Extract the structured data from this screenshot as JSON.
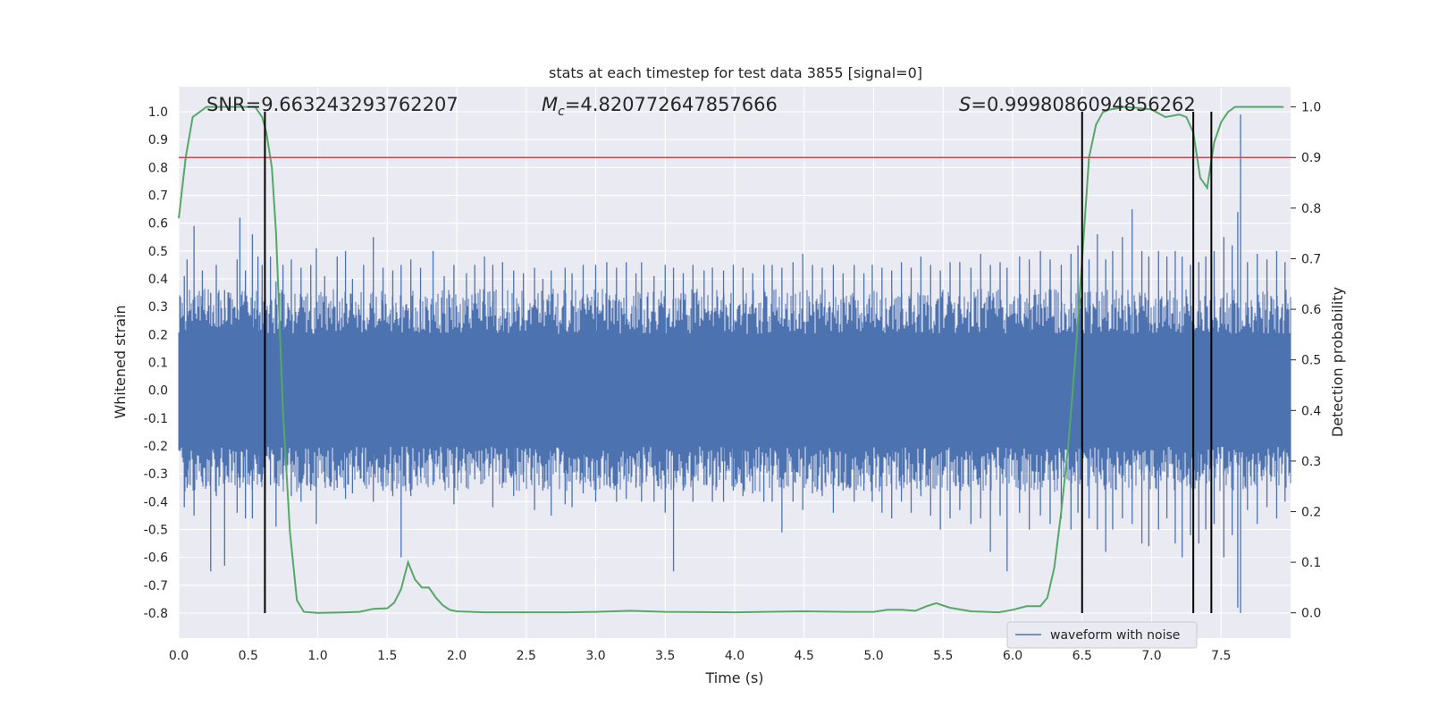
{
  "chart_data": {
    "type": "line",
    "title": "stats at each timestep for test data 3855 [signal=0]",
    "xlabel": "Time (s)",
    "ylabel": "Whitened strain",
    "y2label": "Detection probability",
    "xlim": [
      0,
      8
    ],
    "ylim": [
      -0.89,
      1.09
    ],
    "y2lim": [
      -0.05,
      1.04
    ],
    "x_ticks": [
      "0.0",
      "0.5",
      "1.0",
      "1.5",
      "2.0",
      "2.5",
      "3.0",
      "3.5",
      "4.0",
      "4.5",
      "5.0",
      "5.5",
      "6.0",
      "6.5",
      "7.0",
      "7.5"
    ],
    "y_ticks": [
      "1.0",
      "0.9",
      "0.8",
      "0.7",
      "0.6",
      "0.5",
      "0.4",
      "0.3",
      "0.2",
      "0.1",
      "0.0",
      "-0.1",
      "-0.2",
      "-0.3",
      "-0.4",
      "-0.5",
      "-0.6",
      "-0.7",
      "-0.8"
    ],
    "y2_ticks": [
      "1.0",
      "0.9",
      "0.8",
      "0.7",
      "0.6",
      "0.5",
      "0.4",
      "0.3",
      "0.2",
      "0.1",
      "0.0"
    ],
    "annotations": {
      "snr": "SNR=9.663243293762207",
      "mc_prefix": "M",
      "mc_sub": "c",
      "mc_value": "=4.820772647857666",
      "s_prefix": "S",
      "s_value": "=0.9998086094856262"
    },
    "grid": true,
    "legend": {
      "position": "lower-right",
      "entries": [
        "waveform with noise"
      ]
    },
    "colors": {
      "waveform": "#4c72b0",
      "probability": "#55a868",
      "threshold": "#c44e52",
      "markers": "#000000",
      "background": "#eaeaf2",
      "grid": "#ffffff"
    },
    "waveform": {
      "envelope_typical": 0.27,
      "spikes": [
        {
          "t": 0.04,
          "hi": 0.41,
          "lo": -0.42
        },
        {
          "t": 0.06,
          "hi": 0.47,
          "lo": -0.35
        },
        {
          "t": 0.11,
          "hi": 0.59,
          "lo": -0.45
        },
        {
          "t": 0.17,
          "hi": 0.43,
          "lo": -0.33
        },
        {
          "t": 0.23,
          "hi": 0.35,
          "lo": -0.65
        },
        {
          "t": 0.27,
          "hi": 0.45,
          "lo": -0.38
        },
        {
          "t": 0.33,
          "hi": 0.36,
          "lo": -0.63
        },
        {
          "t": 0.42,
          "hi": 0.47,
          "lo": -0.44
        },
        {
          "t": 0.44,
          "hi": 0.62,
          "lo": -0.35
        },
        {
          "t": 0.48,
          "hi": 0.43,
          "lo": -0.46
        },
        {
          "t": 0.53,
          "hi": 0.56,
          "lo": -0.46
        },
        {
          "t": 0.57,
          "hi": 0.48,
          "lo": -0.3
        },
        {
          "t": 0.6,
          "hi": 0.45,
          "lo": -0.32
        },
        {
          "t": 0.66,
          "hi": 0.48,
          "lo": -0.34
        },
        {
          "t": 0.7,
          "hi": 0.39,
          "lo": -0.49
        },
        {
          "t": 0.75,
          "hi": 0.45,
          "lo": -0.32
        },
        {
          "t": 0.81,
          "hi": 0.47,
          "lo": -0.38
        },
        {
          "t": 0.88,
          "hi": 0.44,
          "lo": -0.4
        },
        {
          "t": 0.95,
          "hi": 0.45,
          "lo": -0.36
        },
        {
          "t": 0.99,
          "hi": 0.51,
          "lo": -0.48
        },
        {
          "t": 1.05,
          "hi": 0.41,
          "lo": -0.33
        },
        {
          "t": 1.14,
          "hi": 0.48,
          "lo": -0.35
        },
        {
          "t": 1.2,
          "hi": 0.5,
          "lo": -0.39
        },
        {
          "t": 1.25,
          "hi": 0.4,
          "lo": -0.37
        },
        {
          "t": 1.33,
          "hi": 0.45,
          "lo": -0.33
        },
        {
          "t": 1.4,
          "hi": 0.55,
          "lo": -0.4
        },
        {
          "t": 1.47,
          "hi": 0.44,
          "lo": -0.36
        },
        {
          "t": 1.54,
          "hi": 0.43,
          "lo": -0.38
        },
        {
          "t": 1.6,
          "hi": 0.45,
          "lo": -0.6
        },
        {
          "t": 1.67,
          "hi": 0.47,
          "lo": -0.38
        },
        {
          "t": 1.74,
          "hi": 0.44,
          "lo": -0.31
        },
        {
          "t": 1.83,
          "hi": 0.5,
          "lo": -0.34
        },
        {
          "t": 1.91,
          "hi": 0.41,
          "lo": -0.33
        },
        {
          "t": 1.98,
          "hi": 0.45,
          "lo": -0.41
        },
        {
          "t": 2.07,
          "hi": 0.42,
          "lo": -0.35
        },
        {
          "t": 2.13,
          "hi": 0.45,
          "lo": -0.32
        },
        {
          "t": 2.2,
          "hi": 0.48,
          "lo": -0.32
        },
        {
          "t": 2.26,
          "hi": 0.45,
          "lo": -0.42
        },
        {
          "t": 2.33,
          "hi": 0.46,
          "lo": -0.31
        },
        {
          "t": 2.41,
          "hi": 0.43,
          "lo": -0.38
        },
        {
          "t": 2.48,
          "hi": 0.42,
          "lo": -0.33
        },
        {
          "t": 2.56,
          "hi": 0.44,
          "lo": -0.43
        },
        {
          "t": 2.62,
          "hi": 0.4,
          "lo": -0.36
        },
        {
          "t": 2.68,
          "hi": 0.43,
          "lo": -0.45
        },
        {
          "t": 2.78,
          "hi": 0.44,
          "lo": -0.41
        },
        {
          "t": 2.83,
          "hi": 0.42,
          "lo": -0.42
        },
        {
          "t": 2.91,
          "hi": 0.45,
          "lo": -0.37
        },
        {
          "t": 3.0,
          "hi": 0.45,
          "lo": -0.4
        },
        {
          "t": 3.08,
          "hi": 0.46,
          "lo": -0.34
        },
        {
          "t": 3.15,
          "hi": 0.44,
          "lo": -0.4
        },
        {
          "t": 3.22,
          "hi": 0.46,
          "lo": -0.39
        },
        {
          "t": 3.29,
          "hi": 0.42,
          "lo": -0.35
        },
        {
          "t": 3.33,
          "hi": 0.46,
          "lo": -0.4
        },
        {
          "t": 3.42,
          "hi": 0.41,
          "lo": -0.4
        },
        {
          "t": 3.5,
          "hi": 0.45,
          "lo": -0.44
        },
        {
          "t": 3.56,
          "hi": 0.44,
          "lo": -0.65
        },
        {
          "t": 3.63,
          "hi": 0.42,
          "lo": -0.36
        },
        {
          "t": 3.7,
          "hi": 0.45,
          "lo": -0.4
        },
        {
          "t": 3.78,
          "hi": 0.43,
          "lo": -0.34
        },
        {
          "t": 3.84,
          "hi": 0.44,
          "lo": -0.4
        },
        {
          "t": 3.92,
          "hi": 0.43,
          "lo": -0.4
        },
        {
          "t": 3.99,
          "hi": 0.45,
          "lo": -0.36
        },
        {
          "t": 4.06,
          "hi": 0.44,
          "lo": -0.38
        },
        {
          "t": 4.13,
          "hi": 0.42,
          "lo": -0.37
        },
        {
          "t": 4.21,
          "hi": 0.45,
          "lo": -0.4
        },
        {
          "t": 4.27,
          "hi": 0.45,
          "lo": -0.4
        },
        {
          "t": 4.34,
          "hi": 0.44,
          "lo": -0.51
        },
        {
          "t": 4.42,
          "hi": 0.46,
          "lo": -0.4
        },
        {
          "t": 4.49,
          "hi": 0.49,
          "lo": -0.43
        },
        {
          "t": 4.56,
          "hi": 0.45,
          "lo": -0.37
        },
        {
          "t": 4.63,
          "hi": 0.44,
          "lo": -0.38
        },
        {
          "t": 4.71,
          "hi": 0.45,
          "lo": -0.44
        },
        {
          "t": 4.78,
          "hi": 0.42,
          "lo": -0.36
        },
        {
          "t": 4.86,
          "hi": 0.45,
          "lo": -0.4
        },
        {
          "t": 4.93,
          "hi": 0.42,
          "lo": -0.36
        },
        {
          "t": 4.99,
          "hi": 0.45,
          "lo": -0.4
        },
        {
          "t": 5.06,
          "hi": 0.44,
          "lo": -0.44
        },
        {
          "t": 5.13,
          "hi": 0.43,
          "lo": -0.46
        },
        {
          "t": 5.2,
          "hi": 0.46,
          "lo": -0.4
        },
        {
          "t": 5.27,
          "hi": 0.44,
          "lo": -0.44
        },
        {
          "t": 5.34,
          "hi": 0.48,
          "lo": -0.38
        },
        {
          "t": 5.41,
          "hi": 0.45,
          "lo": -0.45
        },
        {
          "t": 5.48,
          "hi": 0.43,
          "lo": -0.5
        },
        {
          "t": 5.55,
          "hi": 0.46,
          "lo": -0.46
        },
        {
          "t": 5.62,
          "hi": 0.46,
          "lo": -0.43
        },
        {
          "t": 5.7,
          "hi": 0.44,
          "lo": -0.48
        },
        {
          "t": 5.77,
          "hi": 0.49,
          "lo": -0.46
        },
        {
          "t": 5.84,
          "hi": 0.45,
          "lo": -0.58
        },
        {
          "t": 5.91,
          "hi": 0.46,
          "lo": -0.45
        },
        {
          "t": 5.96,
          "hi": 0.44,
          "lo": -0.65
        },
        {
          "t": 6.05,
          "hi": 0.48,
          "lo": -0.44
        },
        {
          "t": 6.12,
          "hi": 0.47,
          "lo": -0.5
        },
        {
          "t": 6.2,
          "hi": 0.5,
          "lo": -0.45
        },
        {
          "t": 6.27,
          "hi": 0.47,
          "lo": -0.48
        },
        {
          "t": 6.35,
          "hi": 0.45,
          "lo": -0.46
        },
        {
          "t": 6.42,
          "hi": 0.49,
          "lo": -0.5
        },
        {
          "t": 6.47,
          "hi": 0.52,
          "lo": -0.44
        },
        {
          "t": 6.55,
          "hi": 0.47,
          "lo": -0.46
        },
        {
          "t": 6.61,
          "hi": 0.56,
          "lo": -0.5
        },
        {
          "t": 6.67,
          "hi": 0.47,
          "lo": -0.58
        },
        {
          "t": 6.72,
          "hi": 0.5,
          "lo": -0.5
        },
        {
          "t": 6.79,
          "hi": 0.55,
          "lo": -0.46
        },
        {
          "t": 6.86,
          "hi": 0.65,
          "lo": -0.48
        },
        {
          "t": 6.93,
          "hi": 0.5,
          "lo": -0.55
        },
        {
          "t": 6.98,
          "hi": 0.48,
          "lo": -0.56
        },
        {
          "t": 7.05,
          "hi": 0.5,
          "lo": -0.5
        },
        {
          "t": 7.11,
          "hi": 0.48,
          "lo": -0.46
        },
        {
          "t": 7.17,
          "hi": 0.5,
          "lo": -0.55
        },
        {
          "t": 7.22,
          "hi": 0.48,
          "lo": -0.6
        },
        {
          "t": 7.28,
          "hi": 0.45,
          "lo": -0.52
        },
        {
          "t": 7.34,
          "hi": 0.46,
          "lo": -0.55
        },
        {
          "t": 7.39,
          "hi": 0.48,
          "lo": -0.5
        },
        {
          "t": 7.45,
          "hi": 0.5,
          "lo": -0.48
        },
        {
          "t": 7.52,
          "hi": 0.55,
          "lo": -0.6
        },
        {
          "t": 7.58,
          "hi": 0.52,
          "lo": -0.52
        },
        {
          "t": 7.62,
          "hi": 0.64,
          "lo": -0.78
        },
        {
          "t": 7.64,
          "hi": 0.99,
          "lo": -0.8
        },
        {
          "t": 7.69,
          "hi": 0.46,
          "lo": -0.43
        },
        {
          "t": 7.76,
          "hi": 0.49,
          "lo": -0.48
        },
        {
          "t": 7.83,
          "hi": 0.47,
          "lo": -0.42
        },
        {
          "t": 7.9,
          "hi": 0.5,
          "lo": -0.46
        },
        {
          "t": 7.96,
          "hi": 0.46,
          "lo": -0.4
        }
      ]
    },
    "probability": {
      "x": [
        0.0,
        0.05,
        0.1,
        0.2,
        0.3,
        0.4,
        0.5,
        0.55,
        0.6,
        0.63,
        0.67,
        0.7,
        0.75,
        0.8,
        0.85,
        0.9,
        1.0,
        1.2,
        1.3,
        1.4,
        1.5,
        1.55,
        1.6,
        1.65,
        1.7,
        1.75,
        1.8,
        1.85,
        1.9,
        1.95,
        2.0,
        2.2,
        2.5,
        2.8,
        3.0,
        3.25,
        3.5,
        4.0,
        4.5,
        4.8,
        5.0,
        5.1,
        5.2,
        5.3,
        5.38,
        5.45,
        5.55,
        5.7,
        5.9,
        6.0,
        6.1,
        6.15,
        6.2,
        6.25,
        6.3,
        6.35,
        6.4,
        6.45,
        6.5,
        6.55,
        6.6,
        6.65,
        6.7,
        6.75,
        6.8,
        6.9,
        7.0,
        7.1,
        7.2,
        7.25,
        7.3,
        7.35,
        7.4,
        7.45,
        7.5,
        7.55,
        7.6,
        7.65,
        7.7,
        7.8,
        7.95
      ],
      "y": [
        0.78,
        0.9,
        0.98,
        1.0,
        1.0,
        1.0,
        1.0,
        1.0,
        0.98,
        0.95,
        0.88,
        0.75,
        0.4,
        0.16,
        0.025,
        0.002,
        0.0,
        0.001,
        0.002,
        0.008,
        0.009,
        0.02,
        0.047,
        0.1,
        0.066,
        0.05,
        0.05,
        0.03,
        0.015,
        0.006,
        0.003,
        0.001,
        0.001,
        0.001,
        0.002,
        0.004,
        0.002,
        0.001,
        0.003,
        0.002,
        0.002,
        0.006,
        0.006,
        0.004,
        0.013,
        0.019,
        0.01,
        0.003,
        0.001,
        0.006,
        0.013,
        0.013,
        0.013,
        0.03,
        0.09,
        0.2,
        0.33,
        0.5,
        0.7,
        0.9,
        0.965,
        0.99,
        0.995,
        0.997,
        1.0,
        0.998,
        0.995,
        0.98,
        0.985,
        0.98,
        0.95,
        0.86,
        0.84,
        0.93,
        0.97,
        0.99,
        1.0,
        1.0,
        1.0,
        1.0,
        1.0
      ]
    },
    "threshold_y2": 0.9,
    "marker_times": [
      0.62,
      6.5,
      7.3,
      7.43
    ],
    "marker_y_range": [
      -0.8,
      1.0
    ]
  }
}
